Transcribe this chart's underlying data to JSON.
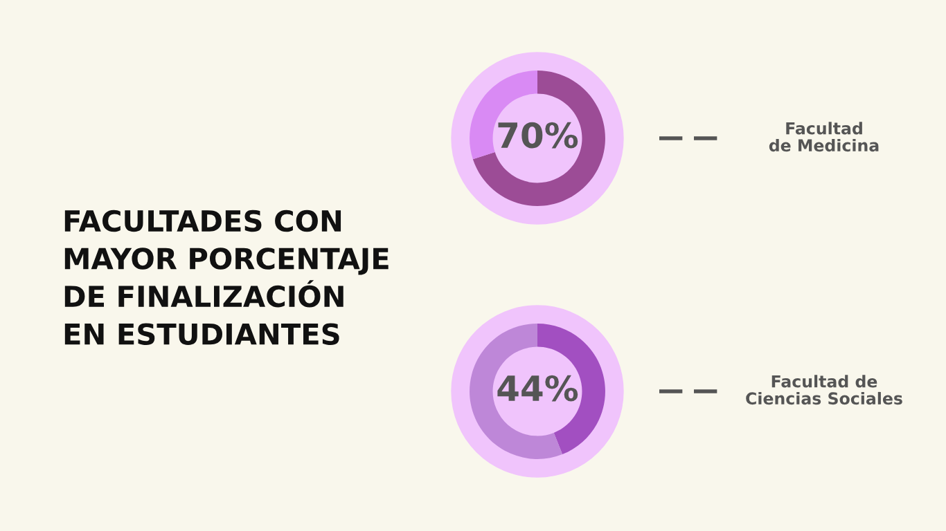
{
  "chart_data": [
    {
      "type": "donut",
      "title": "FACULTADES CON\nMAYOR PORCENTAJE\nDE FINALIZACIÓN\nEN ESTUDIANTES",
      "categories": [
        null,
        null
      ],
      "values": [
        70,
        30
      ],
      "colors": [
        "#9c4c96",
        "#d98af4"
      ],
      "value_labels": [
        "70%",
        null
      ],
      "annotations": [
        "Facultad\nde Medicina"
      ]
    },
    {
      "type": "donut",
      "categories": [
        null,
        null
      ],
      "values": [
        44,
        56
      ],
      "colors": [
        "#a24fc1",
        "#be87d8"
      ],
      "value_labels": [
        "44%",
        null
      ],
      "annotations": [
        "Facultad de\nCiencias Sociales"
      ]
    }
  ]
}
